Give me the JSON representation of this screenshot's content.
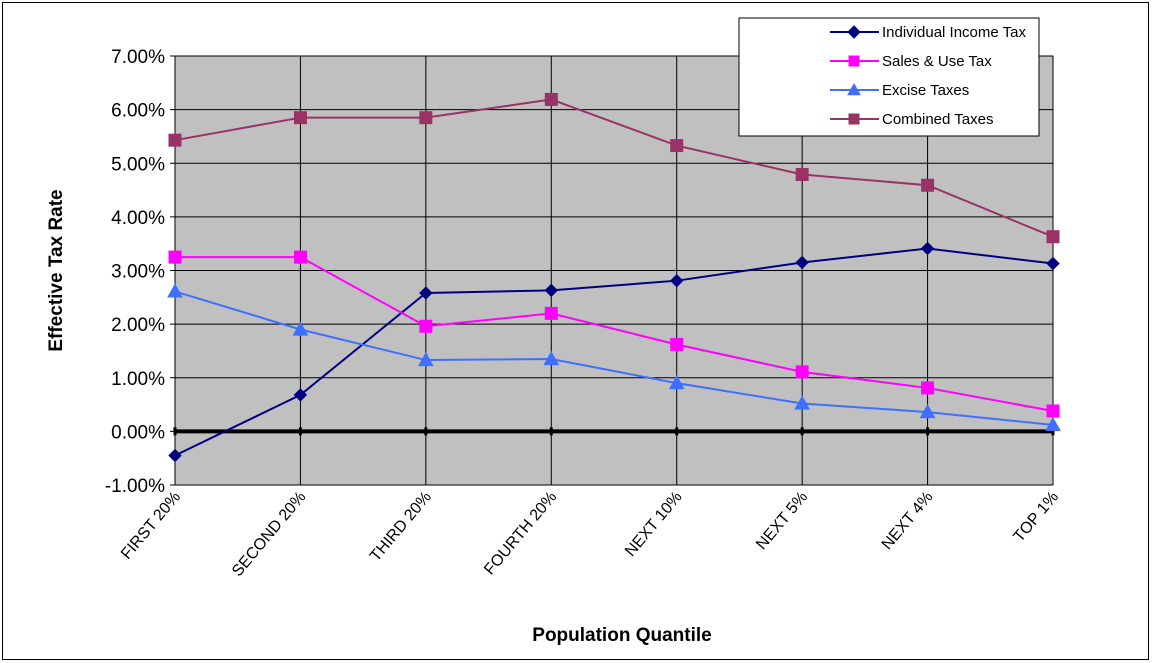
{
  "chart_data": {
    "type": "line",
    "title": "",
    "xlabel": "Population Quantile",
    "ylabel": "Effective Tax Rate",
    "categories": [
      "FIRST 20%",
      "SECOND 20%",
      "THIRD 20%",
      "FOURTH 20%",
      "NEXT 10%",
      "NEXT 5%",
      "NEXT 4%",
      "TOP 1%"
    ],
    "ylim": [
      -1,
      7
    ],
    "yticks": [
      -1,
      0,
      1,
      2,
      3,
      4,
      5,
      6,
      7
    ],
    "ytick_labels": [
      "-1.00%",
      "0.00%",
      "1.00%",
      "2.00%",
      "3.00%",
      "4.00%",
      "5.00%",
      "6.00%",
      "7.00%"
    ],
    "grid": true,
    "plot_background": "#c0c0c0",
    "legend_position": "top-right",
    "series": [
      {
        "name": "Individual Income Tax",
        "color": "#000080",
        "marker": "diamond",
        "values": [
          -0.45,
          0.68,
          2.58,
          2.63,
          2.81,
          3.15,
          3.41,
          3.13
        ]
      },
      {
        "name": "Sales & Use Tax",
        "color": "#ff00ff",
        "marker": "square",
        "values": [
          3.25,
          3.25,
          1.96,
          2.2,
          1.62,
          1.11,
          0.81,
          0.38
        ]
      },
      {
        "name": "Excise Taxes",
        "color": "#3f6fff",
        "marker": "triangle",
        "values": [
          2.61,
          1.9,
          1.33,
          1.35,
          0.9,
          0.52,
          0.36,
          0.12
        ]
      },
      {
        "name": "Combined Taxes",
        "color": "#993366",
        "marker": "square",
        "values": [
          5.43,
          5.85,
          5.85,
          6.19,
          5.33,
          4.79,
          4.59,
          3.63
        ]
      }
    ]
  }
}
